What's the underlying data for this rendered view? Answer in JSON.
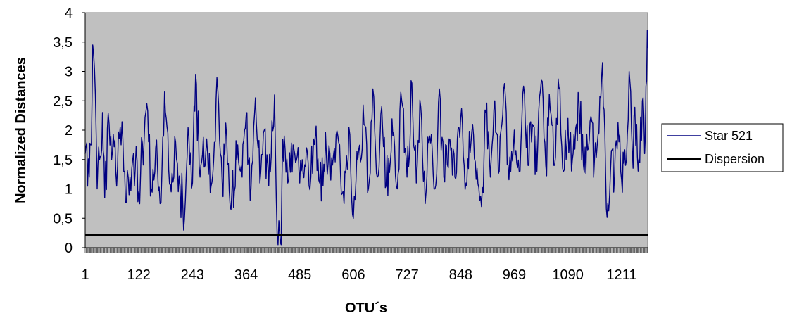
{
  "chart_data": {
    "type": "line",
    "xlabel": "OTU´s",
    "ylabel": "Normalized Distances",
    "x_tick_labels": [
      "1",
      "122",
      "243",
      "364",
      "485",
      "606",
      "727",
      "848",
      "969",
      "1090",
      "1211"
    ],
    "y_tick_labels": [
      "0",
      "0,5",
      "1",
      "1,5",
      "2",
      "2,5",
      "3",
      "3,5",
      "4"
    ],
    "y_ticks": [
      0,
      0.5,
      1,
      1.5,
      2,
      2.5,
      3,
      3.5,
      4
    ],
    "xlim": [
      1,
      1270
    ],
    "ylim": [
      0,
      4
    ],
    "grid": false,
    "legend_position": "right",
    "plot_background": "#c0c0c0",
    "series": [
      {
        "name": "Star 521",
        "color": "#000080",
        "keypoints": [
          [
            1,
            1.6
          ],
          [
            10,
            1.2
          ],
          [
            15,
            1.75
          ],
          [
            18,
            3.45
          ],
          [
            22,
            3.05
          ],
          [
            28,
            1.0
          ],
          [
            35,
            1.55
          ],
          [
            40,
            2.3
          ],
          [
            45,
            0.85
          ],
          [
            55,
            2.1
          ],
          [
            70,
            1.3
          ],
          [
            80,
            2.05
          ],
          [
            90,
            1.3
          ],
          [
            100,
            0.9
          ],
          [
            110,
            1.6
          ],
          [
            122,
            0.95
          ],
          [
            140,
            2.45
          ],
          [
            150,
            1.0
          ],
          [
            160,
            1.7
          ],
          [
            170,
            0.75
          ],
          [
            180,
            2.65
          ],
          [
            195,
            0.95
          ],
          [
            205,
            1.8
          ],
          [
            215,
            1.05
          ],
          [
            225,
            0.5
          ],
          [
            235,
            1.9
          ],
          [
            243,
            1.1
          ],
          [
            250,
            2.95
          ],
          [
            260,
            1.2
          ],
          [
            275,
            1.85
          ],
          [
            285,
            1.05
          ],
          [
            300,
            2.7
          ],
          [
            310,
            1.1
          ],
          [
            320,
            1.9
          ],
          [
            330,
            0.65
          ],
          [
            345,
            1.75
          ],
          [
            355,
            1.2
          ],
          [
            364,
            2.25
          ],
          [
            375,
            1.0
          ],
          [
            385,
            2.55
          ],
          [
            395,
            1.1
          ],
          [
            405,
            2.0
          ],
          [
            415,
            1.05
          ],
          [
            428,
            2.6
          ],
          [
            432,
            0.85
          ],
          [
            434,
            0.22
          ],
          [
            440,
            0.22
          ],
          [
            443,
            0.0
          ],
          [
            445,
            1.25
          ],
          [
            450,
            1.9
          ],
          [
            458,
            1.1
          ],
          [
            470,
            1.75
          ],
          [
            485,
            1.1
          ],
          [
            500,
            1.7
          ],
          [
            510,
            1.2
          ],
          [
            520,
            1.9
          ],
          [
            530,
            1.1
          ],
          [
            545,
            1.6
          ],
          [
            555,
            1.15
          ],
          [
            575,
            1.75
          ],
          [
            585,
            0.75
          ],
          [
            596,
            2.05
          ],
          [
            606,
            0.5
          ],
          [
            616,
            1.5
          ],
          [
            630,
            2.1
          ],
          [
            640,
            1.0
          ],
          [
            650,
            2.7
          ],
          [
            660,
            1.2
          ],
          [
            670,
            2.4
          ],
          [
            680,
            1.05
          ],
          [
            695,
            1.9
          ],
          [
            705,
            1.0
          ],
          [
            715,
            2.5
          ],
          [
            727,
            1.2
          ],
          [
            738,
            2.8
          ],
          [
            748,
            1.1
          ],
          [
            758,
            2.4
          ],
          [
            768,
            0.75
          ],
          [
            778,
            1.9
          ],
          [
            790,
            1.0
          ],
          [
            800,
            2.7
          ],
          [
            810,
            1.2
          ],
          [
            822,
            1.85
          ],
          [
            835,
            1.2
          ],
          [
            848,
            2.2
          ],
          [
            860,
            1.1
          ],
          [
            875,
            2.1
          ],
          [
            885,
            1.35
          ],
          [
            895,
            0.7
          ],
          [
            905,
            2.3
          ],
          [
            915,
            1.2
          ],
          [
            925,
            2.5
          ],
          [
            935,
            1.3
          ],
          [
            945,
            2.7
          ],
          [
            955,
            1.4
          ],
          [
            969,
            2.0
          ],
          [
            980,
            1.3
          ],
          [
            990,
            2.75
          ],
          [
            1000,
            1.4
          ],
          [
            1010,
            2.1
          ],
          [
            1020,
            1.3
          ],
          [
            1030,
            2.85
          ],
          [
            1040,
            1.4
          ],
          [
            1050,
            2.35
          ],
          [
            1060,
            1.4
          ],
          [
            1070,
            2.7
          ],
          [
            1080,
            1.3
          ],
          [
            1090,
            2.2
          ],
          [
            1100,
            1.5
          ],
          [
            1115,
            2.5
          ],
          [
            1125,
            1.4
          ],
          [
            1140,
            2.15
          ],
          [
            1150,
            1.5
          ],
          [
            1160,
            1.95
          ],
          [
            1168,
            3.15
          ],
          [
            1175,
            1.25
          ],
          [
            1180,
            0.75
          ],
          [
            1188,
            1.65
          ],
          [
            1195,
            1.2
          ],
          [
            1205,
            1.8
          ],
          [
            1211,
            1.15
          ],
          [
            1220,
            1.4
          ],
          [
            1228,
            3.0
          ],
          [
            1235,
            1.7
          ],
          [
            1245,
            2.1
          ],
          [
            1250,
            1.5
          ],
          [
            1258,
            2.5
          ],
          [
            1263,
            1.6
          ],
          [
            1266,
            2.75
          ],
          [
            1269,
            3.7
          ],
          [
            1270,
            3.4
          ]
        ]
      },
      {
        "name": "Dispersion",
        "color": "#000000",
        "value": 0.22
      }
    ]
  }
}
